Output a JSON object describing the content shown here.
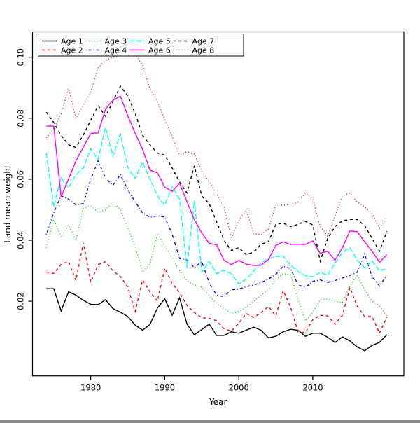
{
  "chart_data": {
    "type": "line",
    "title": "",
    "xlabel": "Year",
    "ylabel": "Land mean weight",
    "x_start_year": 1974,
    "x_end_year": 2020,
    "x_ticks": [
      "1980",
      "1990",
      "2000",
      "2010"
    ],
    "x_tick_values": [
      1980,
      1990,
      2000,
      2010
    ],
    "y_ticks": [
      "0.02",
      "0.04",
      "0.06",
      "0.08",
      "0.10"
    ],
    "y_tick_values": [
      0.02,
      0.04,
      0.06,
      0.08,
      0.1
    ],
    "ylim": [
      -0.0045,
      0.108
    ],
    "xlim": [
      1972.2,
      2021.8
    ],
    "grid": false,
    "legend_position": "top-left-inside",
    "legend_columns": 4,
    "series": [
      {
        "name": "Age 1",
        "color": "#000000",
        "dash": "",
        "values": [
          0.0241,
          0.0241,
          0.0168,
          0.0231,
          0.022,
          0.0203,
          0.019,
          0.0189,
          0.0205,
          0.0176,
          0.0164,
          0.015,
          0.0122,
          0.0105,
          0.0124,
          0.0177,
          0.0208,
          0.0154,
          0.0211,
          0.0125,
          0.009,
          0.0107,
          0.0125,
          0.0088,
          0.0088,
          0.01,
          0.0095,
          0.0105,
          0.0115,
          0.0105,
          0.008,
          0.0085,
          0.01,
          0.0108,
          0.0105,
          0.0085,
          0.0095,
          0.0095,
          0.0082,
          0.0065,
          0.0083,
          0.007,
          0.005,
          0.0038,
          0.0055,
          0.0065,
          0.009
        ]
      },
      {
        "name": "Age 2",
        "color": "#FF0000",
        "dash": "4,4",
        "values": [
          0.0296,
          0.0291,
          0.0321,
          0.033,
          0.0268,
          0.0392,
          0.0262,
          0.032,
          0.033,
          0.03,
          0.0281,
          0.0247,
          0.0166,
          0.027,
          0.0231,
          0.02,
          0.0308,
          0.0259,
          0.0228,
          0.0186,
          0.0163,
          0.0146,
          0.0144,
          0.0136,
          0.011,
          0.0102,
          0.0128,
          0.016,
          0.0147,
          0.0162,
          0.0183,
          0.0152,
          0.0235,
          0.018,
          0.01,
          0.0097,
          0.014,
          0.0154,
          0.0152,
          0.0124,
          0.0155,
          0.0245,
          0.0183,
          0.015,
          0.015,
          0.0095,
          0.0148
        ]
      },
      {
        "name": "Age 3",
        "color": "#00CD00",
        "dash": "1,3",
        "values": [
          0.0375,
          0.0468,
          0.041,
          0.045,
          0.04,
          0.0505,
          0.0512,
          0.0491,
          0.05,
          0.0525,
          0.05,
          0.044,
          0.038,
          0.0295,
          0.0322,
          0.0422,
          0.038,
          0.0344,
          0.03,
          0.0267,
          0.0254,
          0.0246,
          0.0219,
          0.0192,
          0.0175,
          0.0161,
          0.0165,
          0.018,
          0.02,
          0.0219,
          0.0238,
          0.0272,
          0.0291,
          0.0287,
          0.0205,
          0.0135,
          0.0165,
          0.0205,
          0.0208,
          0.02,
          0.0195,
          0.025,
          0.0285,
          0.0238,
          0.02,
          0.0185,
          0.0152
        ]
      },
      {
        "name": "Age 4",
        "color": "#0000FF",
        "dash": "1,3,4,3",
        "values": [
          0.0418,
          0.049,
          0.0546,
          0.0535,
          0.0516,
          0.052,
          0.06,
          0.066,
          0.0603,
          0.058,
          0.0615,
          0.0566,
          0.0526,
          0.049,
          0.0475,
          0.048,
          0.0476,
          0.042,
          0.034,
          0.0335,
          0.031,
          0.033,
          0.026,
          0.022,
          0.0215,
          0.0238,
          0.024,
          0.0248,
          0.0253,
          0.0261,
          0.0272,
          0.0288,
          0.0315,
          0.0307,
          0.0253,
          0.0246,
          0.0265,
          0.027,
          0.0262,
          0.0268,
          0.0276,
          0.0285,
          0.0295,
          0.0355,
          0.028,
          0.025,
          0.0285
        ]
      },
      {
        "name": "Age 5",
        "color": "#00FFFF",
        "dash": "7,3",
        "values": [
          0.0686,
          0.051,
          0.0605,
          0.0572,
          0.0614,
          0.0637,
          0.07,
          0.0665,
          0.077,
          0.0675,
          0.0748,
          0.064,
          0.0602,
          0.0656,
          0.0602,
          0.0545,
          0.0515,
          0.0575,
          0.0535,
          0.031,
          0.053,
          0.0296,
          0.033,
          0.029,
          0.0302,
          0.029,
          0.0257,
          0.0272,
          0.0299,
          0.0326,
          0.0339,
          0.0347,
          0.0348,
          0.0318,
          0.0298,
          0.0284,
          0.028,
          0.0295,
          0.0285,
          0.0325,
          0.036,
          0.0375,
          0.0335,
          0.031,
          0.0332,
          0.0299,
          0.0308
        ]
      },
      {
        "name": "Age 6",
        "color": "#FF00FF",
        "dash": "",
        "values": [
          0.0774,
          0.0774,
          0.0542,
          0.06,
          0.066,
          0.0705,
          0.075,
          0.0752,
          0.083,
          0.086,
          0.0872,
          0.0809,
          0.0751,
          0.0698,
          0.063,
          0.0621,
          0.0574,
          0.056,
          0.0587,
          0.0526,
          0.0467,
          0.0424,
          0.039,
          0.0385,
          0.0335,
          0.032,
          0.0334,
          0.0322,
          0.0317,
          0.0318,
          0.0337,
          0.0383,
          0.0395,
          0.0386,
          0.0387,
          0.0386,
          0.0398,
          0.0357,
          0.0364,
          0.0334,
          0.0376,
          0.043,
          0.0428,
          0.0395,
          0.0364,
          0.0328,
          0.0353
        ]
      },
      {
        "name": "Age 7",
        "color": "#000000",
        "dash": "4,4",
        "values": [
          0.082,
          0.0786,
          0.0744,
          0.0713,
          0.0704,
          0.0745,
          0.0793,
          0.0842,
          0.0806,
          0.0855,
          0.0905,
          0.0874,
          0.0816,
          0.0744,
          0.0713,
          0.0686,
          0.0679,
          0.0637,
          0.0591,
          0.0555,
          0.0644,
          0.0545,
          0.052,
          0.046,
          0.04,
          0.0366,
          0.0376,
          0.0353,
          0.0361,
          0.0387,
          0.0395,
          0.0452,
          0.0456,
          0.0445,
          0.0452,
          0.0462,
          0.045,
          0.0331,
          0.0406,
          0.0445,
          0.0464,
          0.0468,
          0.0468,
          0.0448,
          0.0406,
          0.0364,
          0.0429
        ]
      },
      {
        "name": "Age 8",
        "color": "#FF0000",
        "dash": "1,3",
        "values": [
          0.0736,
          0.0765,
          0.0815,
          0.0897,
          0.08,
          0.0843,
          0.0885,
          0.0965,
          0.099,
          0.1,
          0.1005,
          0.1013,
          0.1013,
          0.0973,
          0.0897,
          0.0855,
          0.0797,
          0.074,
          0.068,
          0.069,
          0.0683,
          0.0626,
          0.0591,
          0.0552,
          0.051,
          0.0408,
          0.0464,
          0.0498,
          0.0422,
          0.0418,
          0.0437,
          0.0514,
          0.0515,
          0.0517,
          0.0525,
          0.0556,
          0.0533,
          0.0445,
          0.0414,
          0.048,
          0.0545,
          0.0555,
          0.0525,
          0.051,
          0.0487,
          0.044,
          0.0475
        ]
      }
    ]
  },
  "colors": {
    "background": "#ffffff",
    "axis": "#000000",
    "text": "#000000"
  }
}
